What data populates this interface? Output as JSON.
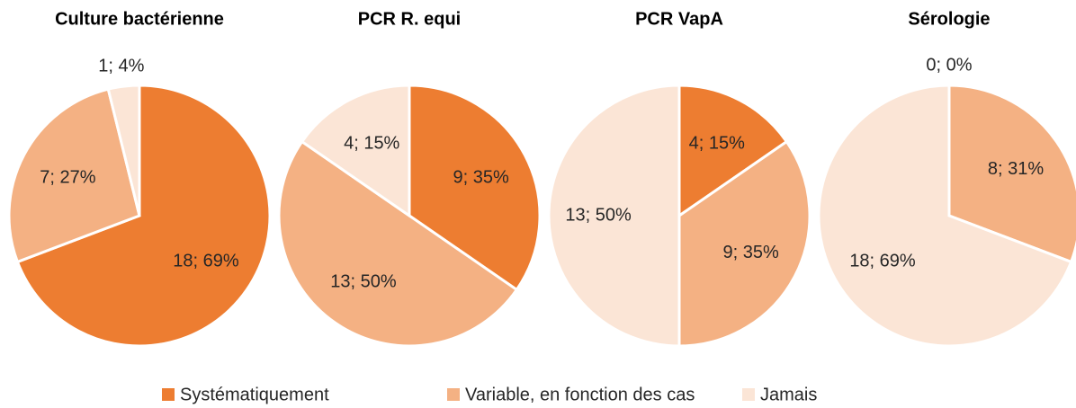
{
  "chart_data": [
    {
      "type": "pie",
      "title": "Culture bactérienne",
      "categories": [
        "Systématiquement",
        "Variable, en fonction des cas",
        "Jamais"
      ],
      "colors": [
        "#ed7d31",
        "#f4b183",
        "#fbe5d6"
      ],
      "values": [
        18,
        7,
        1
      ],
      "value_labels": [
        "18; 69%",
        "7; 27%",
        "1; 4%"
      ]
    },
    {
      "type": "pie",
      "title": "PCR R. equi",
      "categories": [
        "Systématiquement",
        "Variable, en fonction des cas",
        "Jamais"
      ],
      "colors": [
        "#ed7d31",
        "#f4b183",
        "#fbe5d6"
      ],
      "values": [
        9,
        13,
        4
      ],
      "value_labels": [
        "9; 35%",
        "13; 50%",
        "4; 15%"
      ]
    },
    {
      "type": "pie",
      "title": "PCR VapA",
      "categories": [
        "Systématiquement",
        "Variable, en fonction des cas",
        "Jamais"
      ],
      "colors": [
        "#ed7d31",
        "#f4b183",
        "#fbe5d6"
      ],
      "values": [
        4,
        9,
        13
      ],
      "value_labels": [
        "4; 15%",
        "9; 35%",
        "13; 50%"
      ]
    },
    {
      "type": "pie",
      "title": "Sérologie",
      "categories": [
        "Systématiquement",
        "Variable, en fonction des cas",
        "Jamais"
      ],
      "colors": [
        "#ed7d31",
        "#f4b183",
        "#fbe5d6"
      ],
      "values": [
        0,
        8,
        18
      ],
      "value_labels": [
        "0; 0%",
        "8; 31%",
        "18; 69%"
      ]
    }
  ]
}
